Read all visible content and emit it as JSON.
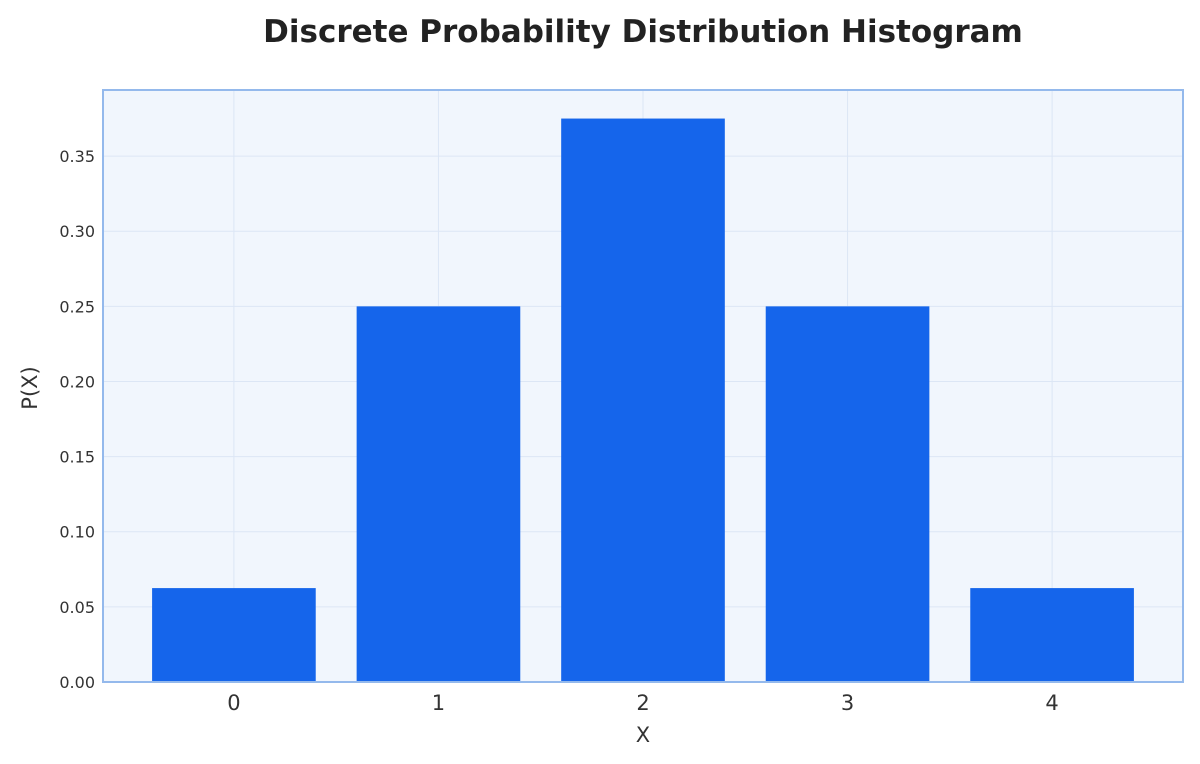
{
  "chart_data": {
    "type": "bar",
    "title": "Discrete Probability Distribution Histogram",
    "xlabel": "X",
    "ylabel": "P(X)",
    "categories": [
      "0",
      "1",
      "2",
      "3",
      "4"
    ],
    "values": [
      0.0625,
      0.25,
      0.375,
      0.25,
      0.0625
    ],
    "ylim": [
      0,
      0.394
    ],
    "yticks": [
      "0.00",
      "0.05",
      "0.10",
      "0.15",
      "0.20",
      "0.25",
      "0.30",
      "0.35"
    ],
    "grid": true,
    "legend": "none",
    "colors": {
      "bar": "#1565EB",
      "plot_background": "#F1F6FD",
      "plot_border": "#94B9EC",
      "grid": "#DCE6F5"
    }
  }
}
